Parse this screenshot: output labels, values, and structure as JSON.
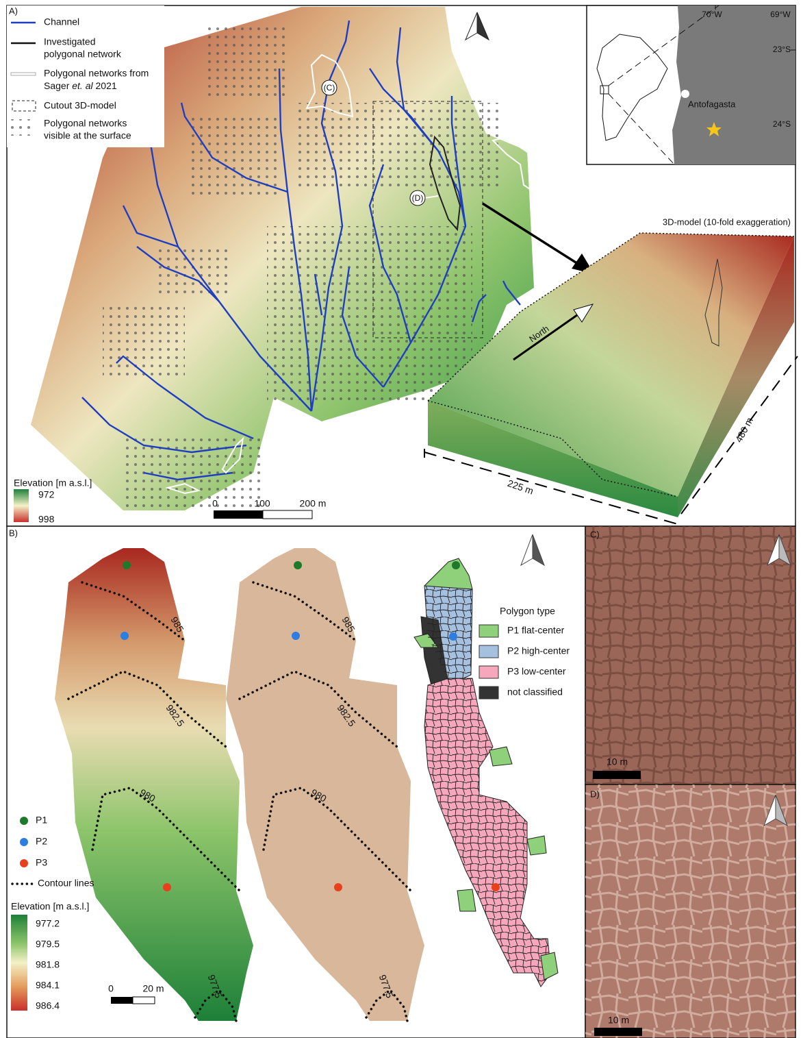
{
  "panel_a": {
    "label": "A)",
    "legend": {
      "channel": "Channel",
      "investigated": [
        "Investigated",
        "polygonal network"
      ],
      "sager": [
        "Polygonal networks from",
        "Sager",
        "et. al",
        "2021"
      ],
      "cutout": "Cutout 3D-model",
      "visible": [
        "Polygonal networks",
        "visible at the surface"
      ]
    },
    "callouts": [
      "(C)",
      "(D)"
    ],
    "elevation": {
      "title": "Elevation [m a.s.l.]",
      "min": "972",
      "max": "998"
    },
    "scale": [
      "0",
      "100",
      "200 m"
    ],
    "inset": {
      "lon": [
        "70°W",
        "69°W"
      ],
      "lat": [
        "23°S",
        "24°S"
      ],
      "city": "Antofagasta"
    },
    "model": {
      "title": "3D-model (10-fold exaggeration)",
      "north": "North",
      "length": "480 m",
      "width": "225 m"
    }
  },
  "panel_b": {
    "label": "B)",
    "contours": [
      "985",
      "982.5",
      "980",
      "977.5"
    ],
    "points": [
      "P1",
      "P2",
      "P3"
    ],
    "contour_legend": "Contour lines",
    "elevation": {
      "title": "Elevation [m a.s.l.]",
      "ticks": [
        "977.2",
        "979.5",
        "981.8",
        "984.1",
        "986.4"
      ]
    },
    "scale": [
      "0",
      "20 m"
    ],
    "polygon_types": {
      "title": "Polygon type",
      "items": [
        "P1 flat-center",
        "P2 high-center",
        "P3 low-center",
        "not classified"
      ]
    }
  },
  "panel_c": {
    "label": "C)",
    "scale": "10 m"
  },
  "panel_d": {
    "label": "D)",
    "scale": "10 m"
  }
}
